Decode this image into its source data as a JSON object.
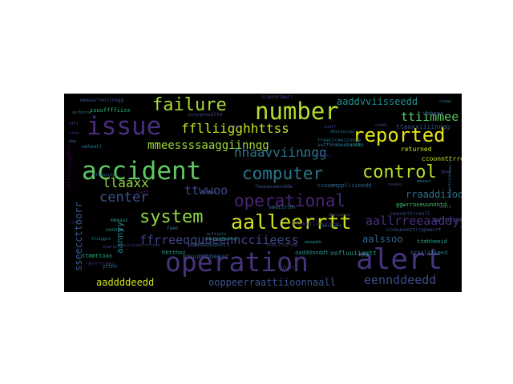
{
  "words": [
    {
      "text": "operation",
      "color": "#46337e"
    },
    {
      "text": "alert",
      "color": "#46337e"
    },
    {
      "text": "accident",
      "color": "#5ec962"
    },
    {
      "text": "number",
      "color": "#b5de2b"
    },
    {
      "text": "issue",
      "color": "#472d7b"
    },
    {
      "text": "failure",
      "color": "#a5db36"
    },
    {
      "text": "reported",
      "color": "#e6e419"
    },
    {
      "text": "system",
      "color": "#90d743"
    },
    {
      "text": "control",
      "color": "#b5de2b"
    },
    {
      "text": "computer",
      "color": "#2a788e"
    },
    {
      "text": "operational",
      "color": "#482475"
    },
    {
      "text": "aalleerrtt",
      "color": "#d0e11c"
    },
    {
      "text": "center",
      "color": "#3b528b"
    },
    {
      "text": "fflliigghhttss",
      "color": "#c8e020"
    },
    {
      "text": "ttiimmee",
      "color": "#5ec962"
    },
    {
      "text": "mmeessssaaggiinngg",
      "color": "#a0da39"
    },
    {
      "text": "hhaavviinngg",
      "color": "#2c728e"
    },
    {
      "text": "llaaxx",
      "color": "#8fd744"
    },
    {
      "text": "ttwwoo",
      "color": "#3e4989"
    },
    {
      "text": "ffrreeqquueenncciieess",
      "color": "#404688"
    },
    {
      "text": "aallrreeaaddyy",
      "color": "#46307e"
    },
    {
      "text": "eennddeedd",
      "color": "#3e4a89"
    },
    {
      "text": "ooppeerraattiioonnaall",
      "color": "#3b528b"
    },
    {
      "text": "aaddddeedd",
      "color": "#d2e21b"
    },
    {
      "text": "aalssoo",
      "color": "#31688e"
    },
    {
      "text": "aannyy",
      "color": "#25858e"
    },
    {
      "text": "rraaddiioo",
      "color": "#2e6f8e"
    },
    {
      "text": "aaddvviisseedd",
      "color": "#21918c"
    },
    {
      "text": "sseeccttoorr",
      "color": "#38588c"
    },
    {
      "text": "returned",
      "color": "#cde11d"
    },
    {
      "text": "ccoommpplliieedd",
      "color": "#31668e"
    },
    {
      "text": "ccoonnttrrooll",
      "color": "#c2df23"
    },
    {
      "text": "ttaaxxiiiinngg",
      "color": "#3a548c"
    },
    {
      "text": "nnuummbbeerr",
      "color": "#365c8d"
    },
    {
      "text": "oofluuiiggtt",
      "color": "#1fa187"
    },
    {
      "text": "ttmhheeid",
      "color": "#20a386"
    },
    {
      "text": "ccssliiieed",
      "color": "#2a788e"
    },
    {
      "text": "aadddnnddt",
      "color": "#21918c"
    },
    {
      "text": "ffaaiilluurree",
      "color": "#472c7a"
    },
    {
      "text": "ggwrrooeuunnntd",
      "color": "#4ac16d"
    },
    {
      "text": "waheee",
      "color": "#3b528b"
    },
    {
      "text": "coonnnttrrooll",
      "color": "#3d4e8a"
    },
    {
      "text": "ccoouunnttrrppaarrt",
      "color": "#38598c"
    },
    {
      "text": "rreeccceeiivvee",
      "color": "#2d708e"
    },
    {
      "text": "uutthhmmeebrreee",
      "color": "#2c738e"
    },
    {
      "text": "aaffttthheerr",
      "color": "#3e4989"
    },
    {
      "text": "hhtthnz",
      "color": "#20a386"
    },
    {
      "text": "aaabbooouutt",
      "color": "#365c8d"
    },
    {
      "text": "errrceer",
      "color": "#472d7b"
    },
    {
      "text": "ttmmttoao",
      "color": "#25ab82"
    },
    {
      "text": "mmaaarrnniinngg",
      "color": "#3b528b"
    },
    {
      "text": "ssuuffffiixx",
      "color": "#35b779"
    },
    {
      "text": "ussyynssdtte",
      "color": "#3e4989"
    },
    {
      "text": "ccennnteerr",
      "color": "#433e85"
    },
    {
      "text": "fooaauumnndde",
      "color": "#3b528b"
    },
    {
      "text": "wmhaatt",
      "color": "#2c728e"
    },
    {
      "text": "oonnee",
      "color": "#21918c"
    },
    {
      "text": "mmaass",
      "color": "#1f9e89"
    },
    {
      "text": "xxffiliiiggghhttt",
      "color": "#440154"
    },
    {
      "text": "aircraft",
      "color": "#2a788e"
    },
    {
      "text": "antt",
      "color": "#21918c"
    },
    {
      "text": "ccwkk",
      "color": "#3b528b"
    },
    {
      "text": "ytthh",
      "color": "#2c728e"
    },
    {
      "text": "alartp",
      "color": "#414487"
    },
    {
      "text": "ttiiggxx",
      "color": "#24878e"
    },
    {
      "text": "multiple",
      "color": "#31688e"
    },
    {
      "text": "etmm",
      "color": "#443983"
    },
    {
      "text": "airborne",
      "color": "#2c728e"
    },
    {
      "text": "xfft",
      "color": "#3b528b"
    },
    {
      "text": "tthe",
      "color": "#482878"
    },
    {
      "text": "daa",
      "color": "#2d708e"
    },
    {
      "text": "fleet",
      "color": "#433e85"
    },
    {
      "text": "sxitt",
      "color": "#31688e"
    },
    {
      "text": "mmwiitthh",
      "color": "#2a788e"
    },
    {
      "text": "ffaaiiluurree",
      "color": "#46337e"
    },
    {
      "text": "dlsssions",
      "color": "#3e4989"
    },
    {
      "text": "xxaaffttthheerrr",
      "color": "#31688e"
    },
    {
      "text": "aeeqqkk",
      "color": "#21918c"
    },
    {
      "text": "feeo",
      "color": "#2a788e"
    },
    {
      "text": "fuuiiiaa",
      "color": "#443983"
    },
    {
      "text": "iittrrraa",
      "color": "#414487"
    },
    {
      "text": "ffllttt",
      "color": "#472d7b"
    },
    {
      "text": "oorr",
      "color": "#2c728e"
    },
    {
      "text": "sseess",
      "color": "#3b528b"
    },
    {
      "text": "mmaaxx",
      "color": "#287c8e"
    },
    {
      "text": "ccaaa",
      "color": "#2a788e"
    },
    {
      "text": "tttwaiilyy",
      "color": "#31688e"
    },
    {
      "text": "ddiiggkkkinng",
      "color": "#1f9e89"
    },
    {
      "text": "bbooaa",
      "color": "#3b528b"
    },
    {
      "text": "cuuff",
      "color": "#482475"
    },
    {
      "text": "suuff",
      "color": "#3e4989"
    },
    {
      "text": "rrff",
      "color": "#443983"
    },
    {
      "text": "ddiissccuu",
      "color": "#2a788e"
    },
    {
      "text": "ggaa",
      "color": "#414487"
    }
  ]
}
